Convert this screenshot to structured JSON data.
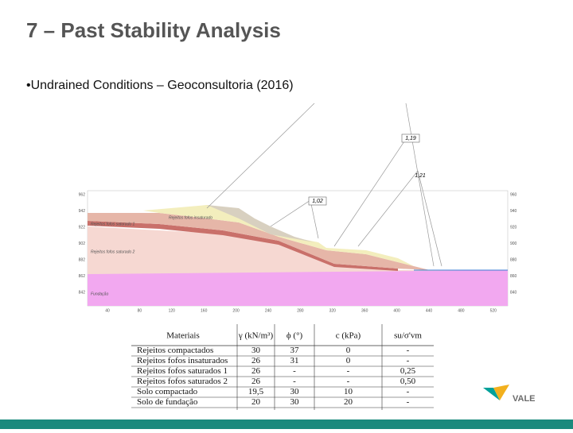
{
  "header": {
    "title": "7 – Past Stability Analysis",
    "bullet": "•Undrained Conditions – Geoconsultoria (2016)"
  },
  "section": {
    "labels": {
      "fs1": "1,19",
      "fs2": "1,21",
      "fs3": "1,02",
      "unsat": "Rejeitos fofos insaturado",
      "sat1": "Rejeitos fofos saturado 1",
      "sat2": "Rejeitos fofos saturado 2",
      "found": "Fundação"
    },
    "left_ticks": [
      962,
      942,
      922,
      902,
      882,
      862,
      842
    ],
    "right_ticks": [
      960,
      940,
      920,
      900,
      880,
      860,
      840
    ],
    "x_ticks": [
      40,
      80,
      120,
      160,
      200,
      240,
      280,
      320,
      360,
      400,
      440,
      480,
      520
    ]
  },
  "table": {
    "header": [
      "Materiais",
      "γ (kN/m³)",
      "ϕ (°)",
      "c (kPa)",
      "su/σ'vm"
    ],
    "rows": [
      [
        "Rejeitos compactados",
        "30",
        "37",
        "0",
        "-"
      ],
      [
        "Rejeitos fofos insaturados",
        "26",
        "31",
        "0",
        "-"
      ],
      [
        "Rejeitos fofos saturados 1",
        "26",
        "-",
        "-",
        "0,25"
      ],
      [
        "Rejeitos fofos saturados 2",
        "26",
        "-",
        "-",
        "0,50"
      ],
      [
        "Solo compactado",
        "19,5",
        "30",
        "10",
        "-"
      ],
      [
        "Solo de fundação",
        "20",
        "30",
        "20",
        "-"
      ]
    ]
  },
  "logo": "VALE"
}
